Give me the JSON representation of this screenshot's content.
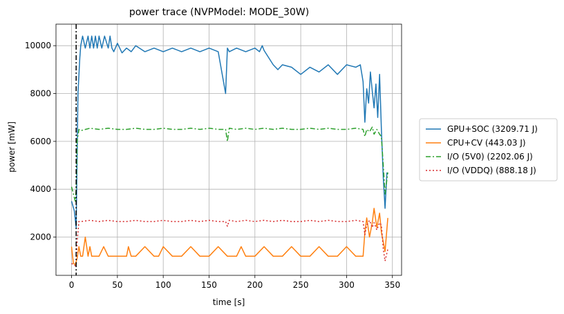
{
  "chart_data": {
    "type": "line",
    "title": "power trace (NVPModel: MODE_30W)",
    "xlabel": "time [s]",
    "ylabel": "power [mW]",
    "xlim": [
      -17,
      360
    ],
    "ylim": [
      400,
      10900
    ],
    "xticks": [
      0,
      50,
      100,
      150,
      200,
      250,
      300,
      350
    ],
    "yticks": [
      2000,
      4000,
      6000,
      8000,
      10000
    ],
    "grid": true,
    "legend_position": "outside-right",
    "vline": {
      "x": 5,
      "style": "dashdot",
      "color": "#000000"
    },
    "series": [
      {
        "name": "GPU+SOC (3209.71 J)",
        "color": "#1f77b4",
        "style": "solid",
        "x": [
          0,
          3,
          5,
          7,
          9,
          10,
          12,
          15,
          18,
          20,
          22,
          24,
          26,
          28,
          30,
          33,
          36,
          40,
          42,
          44,
          46,
          50,
          55,
          60,
          65,
          70,
          80,
          90,
          100,
          110,
          120,
          130,
          140,
          150,
          160,
          168,
          170,
          172,
          180,
          190,
          200,
          205,
          208,
          210,
          215,
          220,
          225,
          230,
          240,
          250,
          260,
          270,
          280,
          290,
          300,
          310,
          315,
          318,
          320,
          322,
          324,
          326,
          328,
          330,
          332,
          334,
          336,
          338,
          340,
          342,
          344
        ],
        "y": [
          3500,
          3100,
          2400,
          8000,
          9500,
          10000,
          10400,
          9900,
          10400,
          9900,
          10400,
          9900,
          10400,
          9900,
          10400,
          9900,
          10400,
          9900,
          10400,
          9900,
          9750,
          10100,
          9700,
          9900,
          9750,
          10000,
          9750,
          9900,
          9750,
          9900,
          9750,
          9900,
          9750,
          9900,
          9750,
          8000,
          9900,
          9750,
          9900,
          9750,
          9900,
          9750,
          10000,
          9800,
          9500,
          9200,
          9000,
          9200,
          9100,
          8800,
          9100,
          8900,
          9200,
          8800,
          9200,
          9100,
          9200,
          8500,
          6800,
          8200,
          7600,
          8900,
          8100,
          7400,
          8400,
          7000,
          8800,
          6500,
          4500,
          3200,
          4700
        ]
      },
      {
        "name": "CPU+CV (443.03 J)",
        "color": "#ff7f0e",
        "style": "solid",
        "x": [
          0,
          2,
          4,
          6,
          8,
          10,
          12,
          15,
          18,
          20,
          22,
          25,
          30,
          35,
          40,
          45,
          50,
          60,
          62,
          65,
          70,
          80,
          90,
          95,
          100,
          110,
          120,
          130,
          140,
          150,
          160,
          170,
          180,
          185,
          190,
          200,
          210,
          220,
          230,
          240,
          250,
          260,
          270,
          280,
          290,
          300,
          310,
          318,
          320,
          322,
          325,
          328,
          330,
          333,
          336,
          338,
          340,
          342,
          345
        ],
        "y": [
          1600,
          900,
          850,
          1100,
          1600,
          1200,
          1200,
          2000,
          1200,
          1600,
          1200,
          1200,
          1200,
          1600,
          1200,
          1200,
          1200,
          1200,
          1600,
          1200,
          1200,
          1600,
          1200,
          1200,
          1600,
          1200,
          1200,
          1600,
          1200,
          1200,
          1600,
          1200,
          1200,
          1600,
          1200,
          1200,
          1600,
          1200,
          1200,
          1600,
          1200,
          1200,
          1600,
          1200,
          1200,
          1600,
          1200,
          1200,
          2200,
          2800,
          2000,
          2600,
          3200,
          2400,
          3000,
          2200,
          1800,
          1400,
          2800
        ]
      },
      {
        "name": "I/O (5V0) (2202.06 J)",
        "color": "#2ca02c",
        "style": "dashdot",
        "x": [
          0,
          2,
          4,
          5,
          6,
          8,
          10,
          20,
          30,
          40,
          50,
          60,
          70,
          80,
          90,
          100,
          110,
          120,
          130,
          140,
          150,
          160,
          168,
          170,
          172,
          180,
          190,
          200,
          210,
          220,
          230,
          240,
          250,
          260,
          270,
          280,
          290,
          300,
          310,
          318,
          320,
          322,
          325,
          328,
          330,
          333,
          336,
          338,
          340,
          342,
          345
        ],
        "y": [
          4100,
          3800,
          3500,
          4000,
          6000,
          6500,
          6450,
          6550,
          6500,
          6550,
          6500,
          6500,
          6550,
          6500,
          6500,
          6550,
          6500,
          6500,
          6550,
          6500,
          6550,
          6500,
          6500,
          6000,
          6550,
          6500,
          6550,
          6500,
          6550,
          6500,
          6550,
          6500,
          6500,
          6550,
          6500,
          6550,
          6500,
          6500,
          6550,
          6500,
          6200,
          6500,
          6400,
          6600,
          6300,
          6500,
          6300,
          6200,
          5000,
          3800,
          4700
        ]
      },
      {
        "name": "I/O (VDDQ) (888.18 J)",
        "color": "#d62728",
        "style": "dotted",
        "x": [
          0,
          2,
          4,
          5,
          6,
          8,
          10,
          20,
          30,
          40,
          50,
          60,
          70,
          80,
          90,
          100,
          110,
          120,
          130,
          140,
          150,
          160,
          168,
          170,
          172,
          180,
          190,
          200,
          210,
          220,
          230,
          240,
          250,
          260,
          270,
          280,
          290,
          300,
          310,
          318,
          320,
          322,
          325,
          328,
          330,
          333,
          336,
          338,
          340,
          342,
          345
        ],
        "y": [
          900,
          850,
          800,
          850,
          1800,
          2650,
          2650,
          2700,
          2650,
          2700,
          2650,
          2650,
          2700,
          2650,
          2650,
          2700,
          2650,
          2650,
          2700,
          2650,
          2700,
          2650,
          2650,
          2450,
          2700,
          2650,
          2700,
          2650,
          2700,
          2650,
          2700,
          2650,
          2650,
          2700,
          2650,
          2700,
          2650,
          2650,
          2700,
          2650,
          2100,
          2500,
          2700,
          2400,
          2600,
          2300,
          2600,
          2500,
          1500,
          1000,
          1500
        ]
      }
    ]
  }
}
